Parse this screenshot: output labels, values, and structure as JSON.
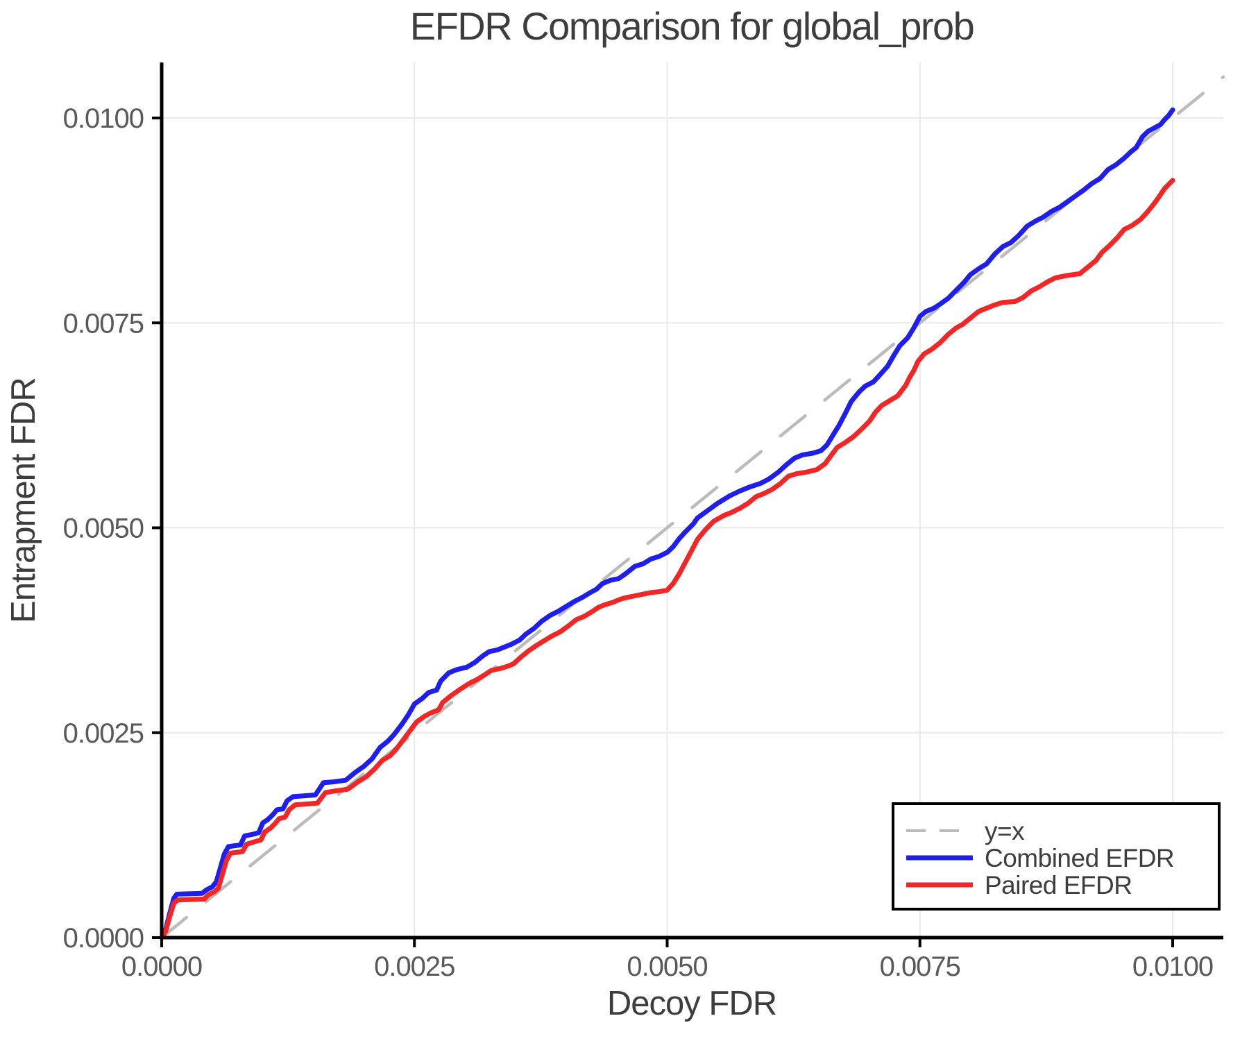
{
  "chart_data": {
    "type": "line",
    "title": "EFDR Comparison for global_prob",
    "xlabel": "Decoy FDR",
    "ylabel": "Entrapment FDR",
    "xlim": [
      0,
      0.0105
    ],
    "ylim": [
      0,
      0.01067
    ],
    "grid": true,
    "legend_position": "lower right",
    "xticks": [
      0.0,
      0.0025,
      0.005,
      0.0075,
      0.01
    ],
    "yticks": [
      0.0,
      0.0025,
      0.005,
      0.0075,
      0.01
    ],
    "xtick_labels": [
      "0.0000",
      "0.0025",
      "0.0050",
      "0.0075",
      "0.0100"
    ],
    "ytick_labels": [
      "0.0000",
      "0.0025",
      "0.0050",
      "0.0075",
      "0.0100"
    ],
    "colors": {
      "background": "#ffffff",
      "grid": "#e9e9e9",
      "spine": "#000000",
      "tick_label": "#595959",
      "title": "#3d3d3d",
      "axis_label": "#3d3d3d",
      "legend_border": "#000000",
      "legend_background": "#ffffff",
      "legend_text": "#3d3d3d"
    },
    "series": [
      {
        "name": "y=x",
        "color": "#bbbbbb",
        "style": "dashed",
        "width": 4.5,
        "points": [
          [
            0,
            0
          ],
          [
            0.0105,
            0.0105
          ]
        ]
      },
      {
        "name": "Combined EFDR",
        "color": "#1e1eef",
        "style": "solid",
        "width": 7,
        "points": [
          [
            0,
            0
          ],
          [
            4e-05,
            0.0001
          ],
          [
            8e-05,
            0.0003
          ],
          [
            0.00012,
            0.00048
          ],
          [
            0.00015,
            0.00053
          ],
          [
            0.0004,
            0.00054
          ],
          [
            0.00044,
            0.00058
          ],
          [
            0.0005,
            0.00062
          ],
          [
            0.00054,
            0.00068
          ],
          [
            0.00058,
            0.00085
          ],
          [
            0.00062,
            0.00102
          ],
          [
            0.00066,
            0.00111
          ],
          [
            0.00078,
            0.00113
          ],
          [
            0.00082,
            0.00124
          ],
          [
            0.0009,
            0.00126
          ],
          [
            0.00096,
            0.00128
          ],
          [
            0.001,
            0.0014
          ],
          [
            0.00105,
            0.00144
          ],
          [
            0.0011,
            0.0015
          ],
          [
            0.00114,
            0.00156
          ],
          [
            0.0012,
            0.00157
          ],
          [
            0.00124,
            0.00167
          ],
          [
            0.0013,
            0.00172
          ],
          [
            0.00152,
            0.00174
          ],
          [
            0.0016,
            0.00189
          ],
          [
            0.0017,
            0.0019
          ],
          [
            0.00182,
            0.00192
          ],
          [
            0.00192,
            0.00202
          ],
          [
            0.002,
            0.00209
          ],
          [
            0.00208,
            0.00218
          ],
          [
            0.00216,
            0.00232
          ],
          [
            0.00224,
            0.0024
          ],
          [
            0.0023,
            0.00248
          ],
          [
            0.00238,
            0.00261
          ],
          [
            0.00244,
            0.00272
          ],
          [
            0.0025,
            0.00285
          ],
          [
            0.00258,
            0.00292
          ],
          [
            0.00264,
            0.00299
          ],
          [
            0.00272,
            0.00302
          ],
          [
            0.00276,
            0.00313
          ],
          [
            0.00284,
            0.00323
          ],
          [
            0.00292,
            0.00327
          ],
          [
            0.00302,
            0.0033
          ],
          [
            0.0031,
            0.00336
          ],
          [
            0.00318,
            0.00344
          ],
          [
            0.00324,
            0.00349
          ],
          [
            0.00332,
            0.00351
          ],
          [
            0.0034,
            0.00355
          ],
          [
            0.00346,
            0.00358
          ],
          [
            0.00354,
            0.00363
          ],
          [
            0.0036,
            0.0037
          ],
          [
            0.00368,
            0.00377
          ],
          [
            0.00376,
            0.00386
          ],
          [
            0.00384,
            0.00393
          ],
          [
            0.00392,
            0.00398
          ],
          [
            0.004,
            0.00404
          ],
          [
            0.00408,
            0.0041
          ],
          [
            0.00416,
            0.00415
          ],
          [
            0.00424,
            0.00421
          ],
          [
            0.0043,
            0.00425
          ],
          [
            0.00436,
            0.00432
          ],
          [
            0.00444,
            0.00436
          ],
          [
            0.00452,
            0.00438
          ],
          [
            0.0046,
            0.00445
          ],
          [
            0.00468,
            0.00453
          ],
          [
            0.00476,
            0.00456
          ],
          [
            0.00484,
            0.00462
          ],
          [
            0.00492,
            0.00465
          ],
          [
            0.005,
            0.0047
          ],
          [
            0.00506,
            0.00477
          ],
          [
            0.00512,
            0.00487
          ],
          [
            0.00518,
            0.00495
          ],
          [
            0.00526,
            0.00505
          ],
          [
            0.0053,
            0.00512
          ],
          [
            0.0054,
            0.00521
          ],
          [
            0.0055,
            0.0053
          ],
          [
            0.00562,
            0.00539
          ],
          [
            0.00572,
            0.00545
          ],
          [
            0.00582,
            0.0055
          ],
          [
            0.00592,
            0.00554
          ],
          [
            0.006,
            0.00559
          ],
          [
            0.0061,
            0.00568
          ],
          [
            0.00618,
            0.00577
          ],
          [
            0.00626,
            0.00585
          ],
          [
            0.00634,
            0.00589
          ],
          [
            0.00644,
            0.00591
          ],
          [
            0.00652,
            0.00594
          ],
          [
            0.00658,
            0.00601
          ],
          [
            0.00664,
            0.00613
          ],
          [
            0.0067,
            0.00625
          ],
          [
            0.00676,
            0.00639
          ],
          [
            0.00682,
            0.00654
          ],
          [
            0.0069,
            0.00666
          ],
          [
            0.00696,
            0.00673
          ],
          [
            0.00704,
            0.00678
          ],
          [
            0.0071,
            0.00686
          ],
          [
            0.00718,
            0.00697
          ],
          [
            0.00724,
            0.0071
          ],
          [
            0.0073,
            0.00722
          ],
          [
            0.00738,
            0.00732
          ],
          [
            0.00744,
            0.00744
          ],
          [
            0.0075,
            0.00758
          ],
          [
            0.00756,
            0.00764
          ],
          [
            0.00764,
            0.00768
          ],
          [
            0.0077,
            0.00773
          ],
          [
            0.00778,
            0.0078
          ],
          [
            0.00786,
            0.0079
          ],
          [
            0.00794,
            0.008
          ],
          [
            0.008,
            0.00809
          ],
          [
            0.00808,
            0.00816
          ],
          [
            0.00816,
            0.00822
          ],
          [
            0.00824,
            0.00834
          ],
          [
            0.00832,
            0.00843
          ],
          [
            0.0084,
            0.00848
          ],
          [
            0.00848,
            0.00857
          ],
          [
            0.00856,
            0.00868
          ],
          [
            0.00864,
            0.00874
          ],
          [
            0.00872,
            0.00879
          ],
          [
            0.0088,
            0.00886
          ],
          [
            0.00888,
            0.00891
          ],
          [
            0.00896,
            0.00898
          ],
          [
            0.00904,
            0.00905
          ],
          [
            0.00912,
            0.00912
          ],
          [
            0.0092,
            0.0092
          ],
          [
            0.00928,
            0.00926
          ],
          [
            0.00936,
            0.00937
          ],
          [
            0.00944,
            0.00943
          ],
          [
            0.00952,
            0.00951
          ],
          [
            0.00958,
            0.00958
          ],
          [
            0.00964,
            0.00964
          ],
          [
            0.0097,
            0.00977
          ],
          [
            0.00976,
            0.00984
          ],
          [
            0.00982,
            0.00988
          ],
          [
            0.00988,
            0.00992
          ],
          [
            0.00992,
            0.00998
          ],
          [
            0.00996,
            0.01003
          ],
          [
            0.01,
            0.0101
          ]
        ]
      },
      {
        "name": "Paired EFDR",
        "color": "#f32626",
        "style": "solid",
        "width": 7,
        "points": [
          [
            0,
            0
          ],
          [
            4e-05,
            8e-05
          ],
          [
            8e-05,
            0.00026
          ],
          [
            0.00012,
            0.00042
          ],
          [
            0.00016,
            0.00046
          ],
          [
            0.00042,
            0.00047
          ],
          [
            0.00046,
            0.00052
          ],
          [
            0.00052,
            0.00056
          ],
          [
            0.00056,
            0.0006
          ],
          [
            0.0006,
            0.00077
          ],
          [
            0.00064,
            0.00094
          ],
          [
            0.00068,
            0.00103
          ],
          [
            0.0008,
            0.00105
          ],
          [
            0.00084,
            0.00114
          ],
          [
            0.00092,
            0.00117
          ],
          [
            0.00098,
            0.00119
          ],
          [
            0.00102,
            0.00129
          ],
          [
            0.00108,
            0.00134
          ],
          [
            0.00112,
            0.00139
          ],
          [
            0.00116,
            0.00145
          ],
          [
            0.00122,
            0.00147
          ],
          [
            0.00126,
            0.00156
          ],
          [
            0.00132,
            0.00162
          ],
          [
            0.00154,
            0.00164
          ],
          [
            0.00162,
            0.00177
          ],
          [
            0.00172,
            0.00179
          ],
          [
            0.00184,
            0.00181
          ],
          [
            0.00194,
            0.0019
          ],
          [
            0.00202,
            0.00196
          ],
          [
            0.0021,
            0.00205
          ],
          [
            0.00218,
            0.00216
          ],
          [
            0.00226,
            0.00222
          ],
          [
            0.00232,
            0.0023
          ],
          [
            0.0024,
            0.00243
          ],
          [
            0.00246,
            0.00253
          ],
          [
            0.00252,
            0.00263
          ],
          [
            0.0026,
            0.0027
          ],
          [
            0.00266,
            0.00274
          ],
          [
            0.00274,
            0.00278
          ],
          [
            0.00278,
            0.00287
          ],
          [
            0.00286,
            0.00295
          ],
          [
            0.00294,
            0.00302
          ],
          [
            0.00304,
            0.0031
          ],
          [
            0.00312,
            0.00315
          ],
          [
            0.0032,
            0.00321
          ],
          [
            0.00326,
            0.00326
          ],
          [
            0.00334,
            0.00328
          ],
          [
            0.00342,
            0.00331
          ],
          [
            0.00348,
            0.00334
          ],
          [
            0.00356,
            0.00343
          ],
          [
            0.00362,
            0.00349
          ],
          [
            0.0037,
            0.00356
          ],
          [
            0.00378,
            0.00362
          ],
          [
            0.00386,
            0.00368
          ],
          [
            0.00394,
            0.00373
          ],
          [
            0.00402,
            0.0038
          ],
          [
            0.0041,
            0.00388
          ],
          [
            0.00418,
            0.00392
          ],
          [
            0.00426,
            0.00398
          ],
          [
            0.00432,
            0.00403
          ],
          [
            0.00438,
            0.00406
          ],
          [
            0.00446,
            0.00409
          ],
          [
            0.00454,
            0.00413
          ],
          [
            0.0046,
            0.00415
          ],
          [
            0.00468,
            0.00417
          ],
          [
            0.00476,
            0.00419
          ],
          [
            0.00484,
            0.00421
          ],
          [
            0.00492,
            0.00422
          ],
          [
            0.005,
            0.00424
          ],
          [
            0.00506,
            0.00432
          ],
          [
            0.00512,
            0.00444
          ],
          [
            0.00518,
            0.00458
          ],
          [
            0.00524,
            0.00472
          ],
          [
            0.0053,
            0.00486
          ],
          [
            0.00538,
            0.00498
          ],
          [
            0.00546,
            0.00508
          ],
          [
            0.00556,
            0.00515
          ],
          [
            0.00564,
            0.00519
          ],
          [
            0.00572,
            0.00524
          ],
          [
            0.0058,
            0.0053
          ],
          [
            0.00588,
            0.00538
          ],
          [
            0.00596,
            0.00542
          ],
          [
            0.00604,
            0.00547
          ],
          [
            0.00612,
            0.00554
          ],
          [
            0.0062,
            0.00563
          ],
          [
            0.00628,
            0.00566
          ],
          [
            0.00638,
            0.00568
          ],
          [
            0.00648,
            0.00571
          ],
          [
            0.00656,
            0.00578
          ],
          [
            0.00662,
            0.00588
          ],
          [
            0.00668,
            0.00598
          ],
          [
            0.00676,
            0.00604
          ],
          [
            0.00684,
            0.00611
          ],
          [
            0.00692,
            0.0062
          ],
          [
            0.007,
            0.0063
          ],
          [
            0.00706,
            0.00641
          ],
          [
            0.00712,
            0.00649
          ],
          [
            0.0072,
            0.00655
          ],
          [
            0.00728,
            0.00661
          ],
          [
            0.00736,
            0.00674
          ],
          [
            0.0074,
            0.00684
          ],
          [
            0.00744,
            0.00692
          ],
          [
            0.00748,
            0.00703
          ],
          [
            0.00754,
            0.00712
          ],
          [
            0.00762,
            0.00718
          ],
          [
            0.0077,
            0.00726
          ],
          [
            0.00778,
            0.00736
          ],
          [
            0.00786,
            0.00744
          ],
          [
            0.00792,
            0.00748
          ],
          [
            0.008,
            0.00756
          ],
          [
            0.00808,
            0.00764
          ],
          [
            0.00816,
            0.00768
          ],
          [
            0.00824,
            0.00772
          ],
          [
            0.00832,
            0.00775
          ],
          [
            0.00844,
            0.00776
          ],
          [
            0.00852,
            0.00781
          ],
          [
            0.0086,
            0.00789
          ],
          [
            0.00868,
            0.00794
          ],
          [
            0.00876,
            0.008
          ],
          [
            0.00884,
            0.00805
          ],
          [
            0.00896,
            0.00808
          ],
          [
            0.00908,
            0.0081
          ],
          [
            0.00916,
            0.00818
          ],
          [
            0.00924,
            0.00826
          ],
          [
            0.0093,
            0.00836
          ],
          [
            0.00938,
            0.00845
          ],
          [
            0.00946,
            0.00855
          ],
          [
            0.00952,
            0.00864
          ],
          [
            0.0096,
            0.00869
          ],
          [
            0.00968,
            0.00876
          ],
          [
            0.00974,
            0.00884
          ],
          [
            0.0098,
            0.00893
          ],
          [
            0.00986,
            0.00903
          ],
          [
            0.00992,
            0.00914
          ],
          [
            0.01,
            0.00924
          ]
        ]
      }
    ]
  }
}
